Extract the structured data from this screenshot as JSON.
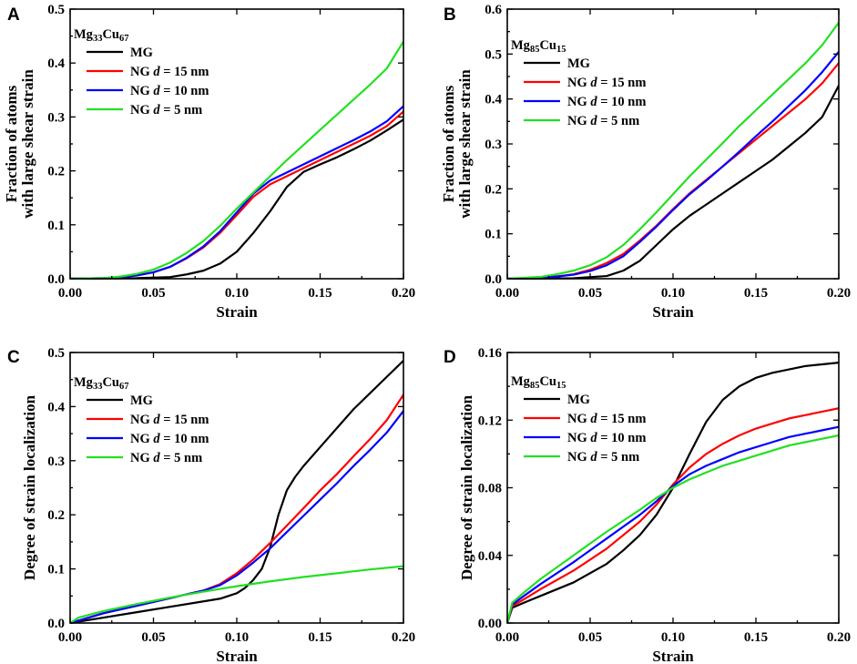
{
  "colors": {
    "MG": "#000000",
    "NG15": "#ff0000",
    "NG10": "#0000ff",
    "NG5": "#22e022"
  },
  "chart_data": [
    {
      "panel": "A",
      "type": "line",
      "alloy": {
        "element1": "Mg",
        "sub1": "33",
        "element2": "Cu",
        "sub2": "67"
      },
      "xlabel": "Strain",
      "ylabel_lines": [
        "Fraction of atoms",
        "with large shear strain"
      ],
      "xlim": [
        0,
        0.2
      ],
      "ylim": [
        0,
        0.5
      ],
      "xticks": [
        0,
        0.05,
        0.1,
        0.15,
        0.2
      ],
      "xtick_labels": [
        "0.00",
        "0.05",
        "0.10",
        "0.15",
        "0.20"
      ],
      "yticks": [
        0,
        0.1,
        0.2,
        0.3,
        0.4,
        0.5
      ],
      "ytick_labels": [
        "0.0",
        "0.1",
        "0.2",
        "0.3",
        "0.4",
        "0.5"
      ],
      "legend": [
        "MG",
        "NG d = 15 nm",
        "NG d = 10 nm",
        "NG d = 5 nm"
      ],
      "series": [
        {
          "name": "MG",
          "color_key": "MG",
          "x": [
            0,
            0.04,
            0.06,
            0.07,
            0.08,
            0.09,
            0.1,
            0.11,
            0.12,
            0.13,
            0.14,
            0.15,
            0.16,
            0.17,
            0.18,
            0.19,
            0.2
          ],
          "y": [
            0,
            0.001,
            0.003,
            0.008,
            0.015,
            0.028,
            0.05,
            0.085,
            0.125,
            0.17,
            0.198,
            0.212,
            0.225,
            0.24,
            0.256,
            0.275,
            0.295
          ]
        },
        {
          "name": "NG d = 15 nm",
          "color_key": "NG15",
          "x": [
            0,
            0.02,
            0.03,
            0.04,
            0.05,
            0.06,
            0.07,
            0.08,
            0.09,
            0.1,
            0.11,
            0.12,
            0.13,
            0.14,
            0.15,
            0.16,
            0.17,
            0.18,
            0.19,
            0.2
          ],
          "y": [
            0,
            0.001,
            0.003,
            0.006,
            0.012,
            0.022,
            0.038,
            0.058,
            0.085,
            0.118,
            0.152,
            0.175,
            0.19,
            0.205,
            0.22,
            0.235,
            0.25,
            0.265,
            0.283,
            0.31
          ]
        },
        {
          "name": "NG d = 10 nm",
          "color_key": "NG10",
          "x": [
            0,
            0.02,
            0.03,
            0.04,
            0.05,
            0.06,
            0.07,
            0.08,
            0.09,
            0.1,
            0.11,
            0.12,
            0.13,
            0.14,
            0.15,
            0.16,
            0.17,
            0.18,
            0.19,
            0.2
          ],
          "y": [
            0,
            0.001,
            0.003,
            0.006,
            0.012,
            0.022,
            0.039,
            0.06,
            0.088,
            0.123,
            0.158,
            0.182,
            0.197,
            0.212,
            0.227,
            0.242,
            0.257,
            0.273,
            0.292,
            0.32
          ]
        },
        {
          "name": "NG d = 5 nm",
          "color_key": "NG5",
          "x": [
            0,
            0.02,
            0.03,
            0.04,
            0.05,
            0.06,
            0.07,
            0.08,
            0.09,
            0.1,
            0.11,
            0.12,
            0.13,
            0.14,
            0.15,
            0.16,
            0.17,
            0.18,
            0.19,
            0.2
          ],
          "y": [
            0,
            0.001,
            0.004,
            0.009,
            0.017,
            0.03,
            0.048,
            0.07,
            0.098,
            0.13,
            0.16,
            0.19,
            0.22,
            0.248,
            0.276,
            0.304,
            0.332,
            0.36,
            0.39,
            0.44
          ]
        }
      ]
    },
    {
      "panel": "B",
      "type": "line",
      "alloy": {
        "element1": "Mg",
        "sub1": "85",
        "element2": "Cu",
        "sub2": "15"
      },
      "xlabel": "Strain",
      "ylabel_lines": [
        "Fraction of atoms",
        "with large shear strain"
      ],
      "xlim": [
        0,
        0.2
      ],
      "ylim": [
        0,
        0.6
      ],
      "xticks": [
        0,
        0.05,
        0.1,
        0.15,
        0.2
      ],
      "xtick_labels": [
        "0.00",
        "0.05",
        "0.10",
        "0.15",
        "0.20"
      ],
      "yticks": [
        0,
        0.1,
        0.2,
        0.3,
        0.4,
        0.5,
        0.6
      ],
      "ytick_labels": [
        "0.0",
        "0.1",
        "0.2",
        "0.3",
        "0.4",
        "0.5",
        "0.6"
      ],
      "legend": [
        "MG",
        "NG d = 15 nm",
        "NG d = 10 nm",
        "NG d = 5 nm"
      ],
      "series": [
        {
          "name": "MG",
          "color_key": "MG",
          "x": [
            0,
            0.04,
            0.06,
            0.07,
            0.08,
            0.09,
            0.1,
            0.11,
            0.12,
            0.13,
            0.14,
            0.15,
            0.16,
            0.17,
            0.18,
            0.19,
            0.2
          ],
          "y": [
            0,
            0.001,
            0.006,
            0.018,
            0.04,
            0.075,
            0.11,
            0.14,
            0.165,
            0.19,
            0.215,
            0.24,
            0.265,
            0.295,
            0.325,
            0.36,
            0.43
          ]
        },
        {
          "name": "NG d = 15 nm",
          "color_key": "NG15",
          "x": [
            0,
            0.02,
            0.03,
            0.04,
            0.05,
            0.06,
            0.07,
            0.08,
            0.09,
            0.1,
            0.11,
            0.12,
            0.13,
            0.14,
            0.15,
            0.16,
            0.17,
            0.18,
            0.19,
            0.2
          ],
          "y": [
            0,
            0.002,
            0.005,
            0.01,
            0.02,
            0.035,
            0.055,
            0.085,
            0.118,
            0.155,
            0.19,
            0.22,
            0.25,
            0.28,
            0.31,
            0.34,
            0.37,
            0.4,
            0.435,
            0.48
          ]
        },
        {
          "name": "NG d = 10 nm",
          "color_key": "NG10",
          "x": [
            0,
            0.02,
            0.03,
            0.04,
            0.05,
            0.06,
            0.07,
            0.08,
            0.09,
            0.1,
            0.11,
            0.12,
            0.13,
            0.14,
            0.15,
            0.16,
            0.17,
            0.18,
            0.19,
            0.2
          ],
          "y": [
            0,
            0.002,
            0.005,
            0.009,
            0.017,
            0.03,
            0.05,
            0.082,
            0.116,
            0.153,
            0.188,
            0.218,
            0.25,
            0.283,
            0.317,
            0.35,
            0.385,
            0.42,
            0.46,
            0.505
          ]
        },
        {
          "name": "NG d = 5 nm",
          "color_key": "NG5",
          "x": [
            0,
            0.02,
            0.03,
            0.04,
            0.05,
            0.06,
            0.07,
            0.08,
            0.09,
            0.1,
            0.11,
            0.12,
            0.13,
            0.14,
            0.15,
            0.16,
            0.17,
            0.18,
            0.19,
            0.2
          ],
          "y": [
            0,
            0.004,
            0.01,
            0.018,
            0.03,
            0.048,
            0.075,
            0.11,
            0.148,
            0.188,
            0.228,
            0.265,
            0.302,
            0.34,
            0.375,
            0.41,
            0.445,
            0.48,
            0.52,
            0.57
          ]
        }
      ]
    },
    {
      "panel": "C",
      "type": "line",
      "alloy": {
        "element1": "Mg",
        "sub1": "33",
        "element2": "Cu",
        "sub2": "67"
      },
      "xlabel": "Strain",
      "ylabel_lines": [
        "Degree of strain localization"
      ],
      "xlim": [
        0,
        0.2
      ],
      "ylim": [
        0,
        0.5
      ],
      "xticks": [
        0,
        0.05,
        0.1,
        0.15,
        0.2
      ],
      "xtick_labels": [
        "0.00",
        "0.05",
        "0.10",
        "0.15",
        "0.20"
      ],
      "yticks": [
        0,
        0.1,
        0.2,
        0.3,
        0.4,
        0.5
      ],
      "ytick_labels": [
        "0.0",
        "0.1",
        "0.2",
        "0.3",
        "0.4",
        "0.5"
      ],
      "legend": [
        "MG",
        "NG d = 15 nm",
        "NG d = 10 nm",
        "NG d = 5 nm"
      ],
      "series": [
        {
          "name": "MG",
          "color_key": "MG",
          "x": [
            0,
            0.02,
            0.04,
            0.06,
            0.08,
            0.09,
            0.1,
            0.105,
            0.11,
            0.115,
            0.12,
            0.125,
            0.13,
            0.135,
            0.14,
            0.15,
            0.16,
            0.17,
            0.18,
            0.19,
            0.2
          ],
          "y": [
            0,
            0.01,
            0.02,
            0.03,
            0.04,
            0.045,
            0.055,
            0.065,
            0.08,
            0.1,
            0.14,
            0.2,
            0.245,
            0.27,
            0.29,
            0.325,
            0.36,
            0.395,
            0.425,
            0.455,
            0.485
          ]
        },
        {
          "name": "NG d = 15 nm",
          "color_key": "NG15",
          "x": [
            0,
            0.02,
            0.04,
            0.06,
            0.08,
            0.09,
            0.1,
            0.11,
            0.12,
            0.13,
            0.14,
            0.15,
            0.16,
            0.17,
            0.18,
            0.19,
            0.2
          ],
          "y": [
            0,
            0.018,
            0.032,
            0.046,
            0.06,
            0.072,
            0.092,
            0.118,
            0.148,
            0.18,
            0.212,
            0.245,
            0.275,
            0.308,
            0.34,
            0.375,
            0.422
          ]
        },
        {
          "name": "NG d = 10 nm",
          "color_key": "NG10",
          "x": [
            0,
            0.02,
            0.04,
            0.06,
            0.08,
            0.09,
            0.1,
            0.11,
            0.12,
            0.13,
            0.14,
            0.15,
            0.16,
            0.17,
            0.18,
            0.19,
            0.2
          ],
          "y": [
            0,
            0.018,
            0.032,
            0.046,
            0.06,
            0.07,
            0.088,
            0.112,
            0.138,
            0.168,
            0.198,
            0.228,
            0.258,
            0.29,
            0.32,
            0.352,
            0.392
          ]
        },
        {
          "name": "NG d = 5 nm",
          "color_key": "NG5",
          "x": [
            0,
            0.005,
            0.02,
            0.04,
            0.06,
            0.08,
            0.1,
            0.12,
            0.14,
            0.16,
            0.18,
            0.2
          ],
          "y": [
            0,
            0.01,
            0.022,
            0.035,
            0.047,
            0.058,
            0.068,
            0.077,
            0.085,
            0.092,
            0.099,
            0.105
          ]
        }
      ]
    },
    {
      "panel": "D",
      "type": "line",
      "alloy": {
        "element1": "Mg",
        "sub1": "85",
        "element2": "Cu",
        "sub2": "15"
      },
      "xlabel": "Strain",
      "ylabel_lines": [
        "Degree of strain localization"
      ],
      "xlim": [
        0,
        0.2
      ],
      "ylim": [
        0,
        0.16
      ],
      "xticks": [
        0,
        0.05,
        0.1,
        0.15,
        0.2
      ],
      "xtick_labels": [
        "0.00",
        "0.05",
        "0.10",
        "0.15",
        "0.20"
      ],
      "yticks": [
        0,
        0.04,
        0.08,
        0.12,
        0.16
      ],
      "ytick_labels": [
        "0.00",
        "0.04",
        "0.08",
        "0.12",
        "0.16"
      ],
      "legend": [
        "MG",
        "NG d = 15 nm",
        "NG d = 10 nm",
        "NG d = 5 nm"
      ],
      "series": [
        {
          "name": "MG",
          "color_key": "MG",
          "x": [
            0,
            0.003,
            0.01,
            0.02,
            0.04,
            0.06,
            0.07,
            0.08,
            0.09,
            0.1,
            0.11,
            0.12,
            0.13,
            0.14,
            0.15,
            0.16,
            0.17,
            0.18,
            0.19,
            0.2
          ],
          "y": [
            0,
            0.009,
            0.012,
            0.016,
            0.024,
            0.035,
            0.043,
            0.052,
            0.064,
            0.08,
            0.1,
            0.119,
            0.132,
            0.14,
            0.145,
            0.148,
            0.15,
            0.152,
            0.153,
            0.154
          ]
        },
        {
          "name": "NG d = 15 nm",
          "color_key": "NG15",
          "x": [
            0,
            0.003,
            0.01,
            0.02,
            0.04,
            0.06,
            0.08,
            0.09,
            0.1,
            0.11,
            0.12,
            0.13,
            0.14,
            0.15,
            0.16,
            0.17,
            0.18,
            0.19,
            0.2
          ],
          "y": [
            0,
            0.01,
            0.014,
            0.02,
            0.031,
            0.044,
            0.06,
            0.07,
            0.082,
            0.092,
            0.1,
            0.106,
            0.111,
            0.115,
            0.118,
            0.121,
            0.123,
            0.125,
            0.127
          ]
        },
        {
          "name": "NG d = 10 nm",
          "color_key": "NG10",
          "x": [
            0,
            0.003,
            0.01,
            0.02,
            0.04,
            0.06,
            0.08,
            0.09,
            0.1,
            0.11,
            0.12,
            0.13,
            0.14,
            0.15,
            0.16,
            0.17,
            0.18,
            0.19,
            0.2
          ],
          "y": [
            0,
            0.011,
            0.016,
            0.023,
            0.036,
            0.05,
            0.064,
            0.072,
            0.081,
            0.088,
            0.093,
            0.097,
            0.101,
            0.104,
            0.107,
            0.11,
            0.112,
            0.114,
            0.116
          ]
        },
        {
          "name": "NG d = 5 nm",
          "color_key": "NG5",
          "x": [
            0,
            0.003,
            0.01,
            0.02,
            0.04,
            0.06,
            0.08,
            0.09,
            0.1,
            0.11,
            0.12,
            0.13,
            0.14,
            0.15,
            0.16,
            0.17,
            0.18,
            0.19,
            0.2
          ],
          "y": [
            0,
            0.012,
            0.018,
            0.026,
            0.04,
            0.054,
            0.067,
            0.074,
            0.08,
            0.085,
            0.089,
            0.093,
            0.096,
            0.099,
            0.102,
            0.105,
            0.107,
            0.109,
            0.111
          ]
        }
      ]
    }
  ]
}
